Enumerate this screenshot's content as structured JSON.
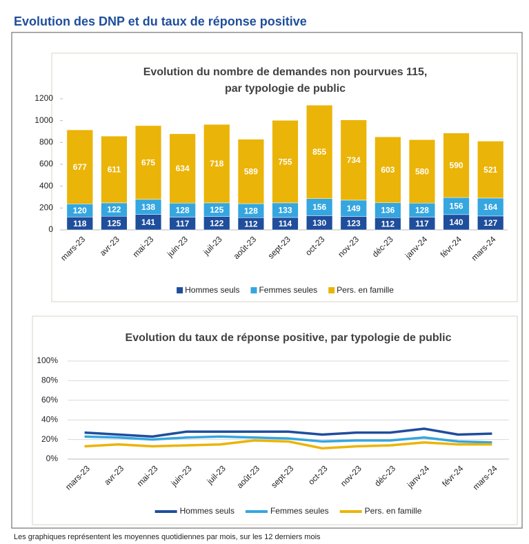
{
  "header": {
    "title": "Evolution des DNP et du taux de réponse positive"
  },
  "chart_data": [
    {
      "type": "bar",
      "stacked": true,
      "title": [
        "Evolution du nombre de demandes non pourvues 115,",
        "par typologie de public"
      ],
      "categories": [
        "mars-23",
        "avr-23",
        "mai-23",
        "juin-23",
        "juil-23",
        "août-23",
        "sept-23",
        "oct-23",
        "nov-23",
        "déc-23",
        "janv-24",
        "févr-24",
        "mars-24"
      ],
      "series": [
        {
          "name": "Hommes seuls",
          "color": "#1f4e9c",
          "values": [
            118,
            125,
            141,
            117,
            122,
            112,
            114,
            130,
            123,
            112,
            117,
            140,
            127
          ]
        },
        {
          "name": "Femmes seules",
          "color": "#35a6df",
          "values": [
            120,
            122,
            138,
            128,
            125,
            128,
            133,
            156,
            149,
            136,
            128,
            156,
            164
          ]
        },
        {
          "name": "Pers. en famille",
          "color": "#ebb408",
          "values": [
            677,
            611,
            675,
            634,
            718,
            589,
            755,
            855,
            734,
            603,
            580,
            590,
            521
          ]
        }
      ],
      "ylim": [
        0,
        1200
      ],
      "yticks": [
        0,
        200,
        400,
        600,
        800,
        1000,
        1200
      ],
      "grid": false,
      "legend": "bottom"
    },
    {
      "type": "line",
      "title": [
        "Evolution du taux de réponse positive, par typologie de public"
      ],
      "categories": [
        "mars-23",
        "avr-23",
        "mai-23",
        "juin-23",
        "juil-23",
        "août-23",
        "sept-23",
        "oct-23",
        "nov-23",
        "déc-23",
        "janv-24",
        "févr-24",
        "mars-24"
      ],
      "series": [
        {
          "name": "Hommes seuls",
          "color": "#1f4e9c",
          "values": [
            27,
            25,
            23,
            28,
            28,
            28,
            28,
            25,
            27,
            27,
            31,
            25,
            26
          ]
        },
        {
          "name": "Femmes seules",
          "color": "#35a6df",
          "values": [
            23,
            22,
            20,
            22,
            23,
            22,
            21,
            18,
            19,
            19,
            22,
            18,
            17
          ]
        },
        {
          "name": "Pers. en famille",
          "color": "#ebb408",
          "values": [
            13,
            15,
            13,
            14,
            15,
            19,
            18,
            11,
            13,
            14,
            17,
            15,
            15
          ]
        }
      ],
      "ylim": [
        0,
        100
      ],
      "yticks": [
        {
          "value": 0,
          "label": "0%"
        },
        {
          "value": 20,
          "label": "20%"
        },
        {
          "value": 40,
          "label": "40%"
        },
        {
          "value": 60,
          "label": "60%"
        },
        {
          "value": 80,
          "label": "80%"
        },
        {
          "value": 100,
          "label": "100%"
        }
      ],
      "grid": true,
      "legend": "bottom"
    }
  ],
  "footnote": "Les graphiques représentent les moyennes quotidiennes par mois, sur les 12 derniers mois"
}
